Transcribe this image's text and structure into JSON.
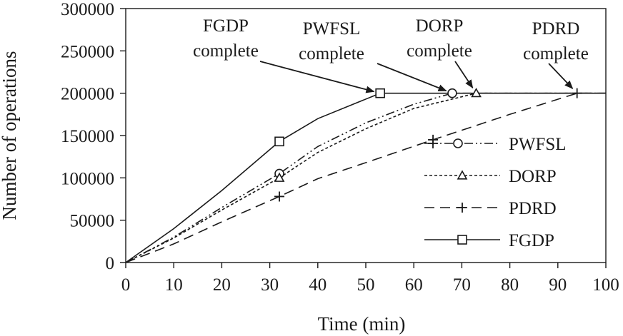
{
  "chart_data": {
    "type": "line",
    "title": "",
    "xlabel": "Time (min)",
    "ylabel": "Number of operations",
    "xlim": [
      0,
      100
    ],
    "ylim": [
      0,
      300000
    ],
    "xticks": [
      0,
      10,
      20,
      30,
      40,
      50,
      60,
      70,
      80,
      90,
      100
    ],
    "yticks": [
      0,
      50000,
      100000,
      150000,
      200000,
      250000,
      300000
    ],
    "grid": false,
    "legend_position": "bottom-right",
    "series": [
      {
        "name": "PWFSL",
        "line_style": "dash-dot-dot",
        "marker": "circle",
        "x": [
          0,
          10,
          20,
          32,
          40,
          50,
          60,
          68,
          73,
          100
        ],
        "y": [
          0,
          30000,
          65000,
          105000,
          137000,
          165000,
          187000,
          200000,
          200000,
          200000
        ],
        "marker_x": [
          32,
          68
        ],
        "marker_y": [
          105000,
          200000
        ]
      },
      {
        "name": "DORP",
        "line_style": "dotted",
        "marker": "triangle",
        "x": [
          0,
          10,
          20,
          32,
          40,
          50,
          60,
          73,
          100
        ],
        "y": [
          0,
          29000,
          62000,
          100000,
          130000,
          158000,
          182000,
          200000,
          200000
        ],
        "marker_x": [
          32,
          73
        ],
        "marker_y": [
          100000,
          200000
        ]
      },
      {
        "name": "PDRD",
        "line_style": "dashed",
        "marker": "plus",
        "x": [
          0,
          10,
          20,
          32,
          40,
          50,
          64,
          80,
          94,
          100
        ],
        "y": [
          0,
          22000,
          48000,
          78000,
          99000,
          118000,
          145000,
          175000,
          200000,
          200000
        ],
        "marker_x": [
          32,
          64,
          94
        ],
        "marker_y": [
          78000,
          145000,
          200000
        ]
      },
      {
        "name": "FGDP",
        "line_style": "solid",
        "marker": "square",
        "x": [
          0,
          10,
          20,
          32,
          40,
          53,
          100
        ],
        "y": [
          0,
          40000,
          85000,
          143000,
          170000,
          200000,
          200000
        ],
        "marker_x": [
          32,
          53
        ],
        "marker_y": [
          143000,
          200000
        ]
      }
    ],
    "annotations": [
      {
        "lines": [
          "FGDP",
          "complete"
        ],
        "target_x": 53,
        "target_y": 200000
      },
      {
        "lines": [
          "PWFSL",
          "complete"
        ],
        "target_x": 68,
        "target_y": 200000
      },
      {
        "lines": [
          "DORP",
          "complete"
        ],
        "target_x": 73,
        "target_y": 200000
      },
      {
        "lines": [
          "PDRD",
          "complete"
        ],
        "target_x": 94,
        "target_y": 200000
      }
    ]
  }
}
